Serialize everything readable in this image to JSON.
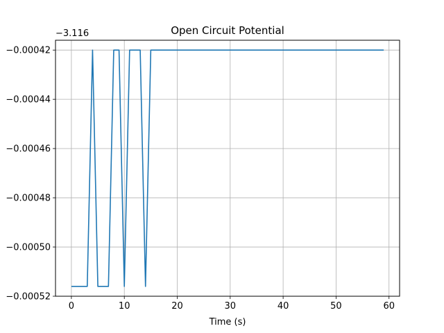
{
  "chart_data": {
    "type": "line",
    "title": "Open Circuit Potential",
    "xlabel": "Time (s)",
    "ylabel": "",
    "y_offset_label": "−3.116",
    "xlim": [
      -3,
      62
    ],
    "ylim": [
      -0.00052,
      -0.000416
    ],
    "xticks": [
      0,
      10,
      20,
      30,
      40,
      50,
      60
    ],
    "xtick_labels": [
      "0",
      "10",
      "20",
      "30",
      "40",
      "50",
      "60"
    ],
    "yticks": [
      -0.00052,
      -0.0005,
      -0.00048,
      -0.00046,
      -0.00044,
      -0.00042
    ],
    "ytick_labels": [
      "−0.00052",
      "−0.00050",
      "−0.00048",
      "−0.00046",
      "−0.00044",
      "−0.00042"
    ],
    "grid": true,
    "series": [
      {
        "color": "#1f77b4",
        "x": [
          0,
          1,
          2,
          3,
          4,
          5,
          6,
          7,
          8,
          9,
          10,
          11,
          12,
          13,
          14,
          15,
          16,
          17,
          18,
          19,
          20,
          21,
          22,
          23,
          24,
          25,
          26,
          27,
          28,
          29,
          30,
          31,
          32,
          33,
          34,
          35,
          36,
          37,
          38,
          39,
          40,
          41,
          42,
          43,
          44,
          45,
          46,
          47,
          48,
          49,
          50,
          51,
          52,
          53,
          54,
          55,
          56,
          57,
          58,
          59
        ],
        "y": [
          -0.000516,
          -0.000516,
          -0.000516,
          -0.000516,
          -0.00042,
          -0.000516,
          -0.000516,
          -0.000516,
          -0.00042,
          -0.00042,
          -0.000516,
          -0.00042,
          -0.00042,
          -0.00042,
          -0.000516,
          -0.00042,
          -0.00042,
          -0.00042,
          -0.00042,
          -0.00042,
          -0.00042,
          -0.00042,
          -0.00042,
          -0.00042,
          -0.00042,
          -0.00042,
          -0.00042,
          -0.00042,
          -0.00042,
          -0.00042,
          -0.00042,
          -0.00042,
          -0.00042,
          -0.00042,
          -0.00042,
          -0.00042,
          -0.00042,
          -0.00042,
          -0.00042,
          -0.00042,
          -0.00042,
          -0.00042,
          -0.00042,
          -0.00042,
          -0.00042,
          -0.00042,
          -0.00042,
          -0.00042,
          -0.00042,
          -0.00042,
          -0.00042,
          -0.00042,
          -0.00042,
          -0.00042,
          -0.00042,
          -0.00042,
          -0.00042,
          -0.00042,
          -0.00042,
          -0.00042
        ]
      }
    ]
  }
}
